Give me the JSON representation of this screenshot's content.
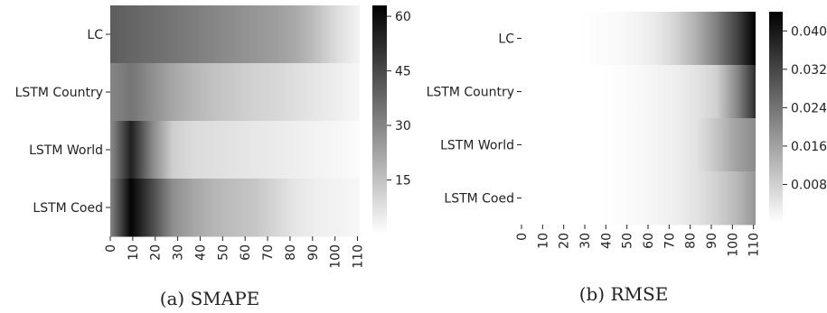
{
  "chart_data": [
    {
      "type": "heatmap",
      "caption": "(a) SMAPE",
      "rows": [
        "LC",
        "LSTM Country",
        "LSTM World",
        "LSTM Coed"
      ],
      "xticks": [
        0,
        10,
        20,
        30,
        40,
        50,
        60,
        70,
        80,
        90,
        100,
        110
      ],
      "x_range": [
        0,
        111
      ],
      "colorbar": {
        "ticks": [
          15,
          30,
          45,
          60
        ],
        "range": [
          0,
          63
        ],
        "cmap": "gray_r"
      },
      "values": [
        [
          40,
          38,
          36,
          34,
          32,
          30,
          28,
          26,
          24,
          21,
          15,
          8,
          3
        ],
        [
          30,
          34,
          28,
          22,
          18,
          15,
          13,
          11,
          10,
          8,
          6,
          4,
          2
        ],
        [
          28,
          55,
          30,
          12,
          9,
          8,
          7,
          6,
          5,
          4,
          3,
          2,
          1
        ],
        [
          30,
          62,
          45,
          28,
          22,
          18,
          16,
          14,
          10,
          6,
          4,
          3,
          2
        ]
      ]
    },
    {
      "type": "heatmap",
      "caption": "(b) RMSE",
      "rows": [
        "LC",
        "LSTM Country",
        "LSTM World",
        "LSTM Coed"
      ],
      "xticks": [
        0,
        10,
        20,
        30,
        40,
        50,
        60,
        70,
        80,
        90,
        100,
        110
      ],
      "x_range": [
        0,
        111
      ],
      "colorbar": {
        "ticks": [
          "0.008",
          "0.016",
          "0.024",
          "0.032",
          "0.040"
        ],
        "range": [
          0,
          0.044
        ],
        "cmap": "gray_r"
      },
      "values": [
        [
          0,
          0,
          0,
          0,
          0.0005,
          0.001,
          0.002,
          0.004,
          0.008,
          0.014,
          0.022,
          0.032,
          0.044
        ],
        [
          0,
          0,
          0,
          0,
          0,
          0.0005,
          0.001,
          0.002,
          0.003,
          0.005,
          0.008,
          0.02,
          0.036
        ],
        [
          0,
          0,
          0,
          0,
          0,
          0.0005,
          0.001,
          0.002,
          0.003,
          0.005,
          0.01,
          0.016,
          0.02
        ],
        [
          0,
          0,
          0,
          0,
          0,
          0.0005,
          0.001,
          0.002,
          0.003,
          0.005,
          0.008,
          0.012,
          0.018
        ]
      ]
    }
  ]
}
